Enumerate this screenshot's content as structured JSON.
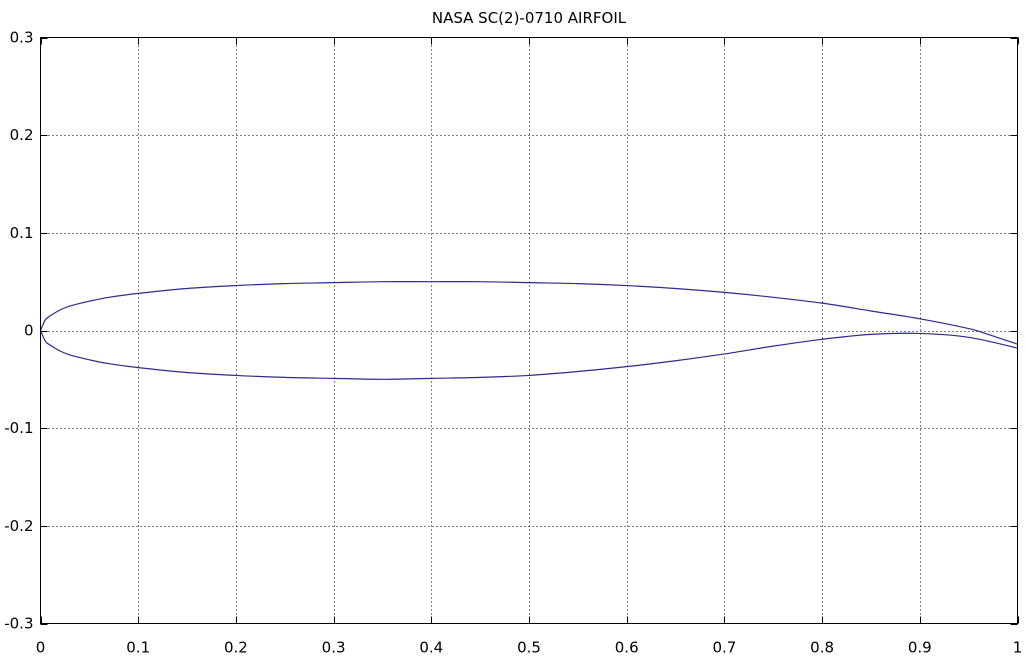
{
  "chart_data": {
    "type": "line",
    "title": "NASA SC(2)-0710 AIRFOIL",
    "xlabel": "",
    "ylabel": "",
    "xlim": [
      0,
      1
    ],
    "ylim": [
      -0.3,
      0.3
    ],
    "x_ticks": [
      0,
      0.1,
      0.2,
      0.3,
      0.4,
      0.5,
      0.6,
      0.7,
      0.8,
      0.9,
      1
    ],
    "x_tick_labels": [
      "0",
      "0.1",
      "0.2",
      "0.3",
      "0.4",
      "0.5",
      "0.6",
      "0.7",
      "0.8",
      "0.9",
      "1"
    ],
    "y_ticks": [
      -0.3,
      -0.2,
      -0.1,
      0,
      0.1,
      0.2,
      0.3
    ],
    "y_tick_labels": [
      "-0.3",
      "-0.2",
      "-0.1",
      "0",
      "0.1",
      "0.2",
      "0.3"
    ],
    "grid": true,
    "legend": "none",
    "series": [
      {
        "color": "#2b2b8c",
        "x": [
          1.0,
          0.97,
          0.95,
          0.9,
          0.85,
          0.8,
          0.75,
          0.7,
          0.65,
          0.6,
          0.55,
          0.5,
          0.45,
          0.4,
          0.35,
          0.3,
          0.25,
          0.2,
          0.15,
          0.1,
          0.07,
          0.05,
          0.03,
          0.02,
          0.01,
          0.005,
          0.0
        ],
        "y": [
          -0.014,
          -0.004,
          0.002,
          0.012,
          0.02,
          0.028,
          0.034,
          0.039,
          0.043,
          0.046,
          0.048,
          0.049,
          0.05,
          0.05,
          0.05,
          0.049,
          0.048,
          0.046,
          0.043,
          0.038,
          0.034,
          0.03,
          0.025,
          0.021,
          0.015,
          0.011,
          0.0
        ]
      },
      {
        "color": "#2b2b8c",
        "x": [
          0.0,
          0.005,
          0.01,
          0.02,
          0.03,
          0.05,
          0.07,
          0.1,
          0.15,
          0.2,
          0.25,
          0.3,
          0.35,
          0.4,
          0.45,
          0.5,
          0.55,
          0.6,
          0.65,
          0.7,
          0.75,
          0.8,
          0.85,
          0.9,
          0.95,
          1.0
        ],
        "y": [
          0.0,
          -0.011,
          -0.015,
          -0.021,
          -0.025,
          -0.03,
          -0.034,
          -0.038,
          -0.043,
          -0.046,
          -0.048,
          -0.049,
          -0.05,
          -0.049,
          -0.048,
          -0.046,
          -0.042,
          -0.037,
          -0.031,
          -0.024,
          -0.016,
          -0.009,
          -0.004,
          -0.003,
          -0.007,
          -0.018
        ]
      }
    ]
  }
}
